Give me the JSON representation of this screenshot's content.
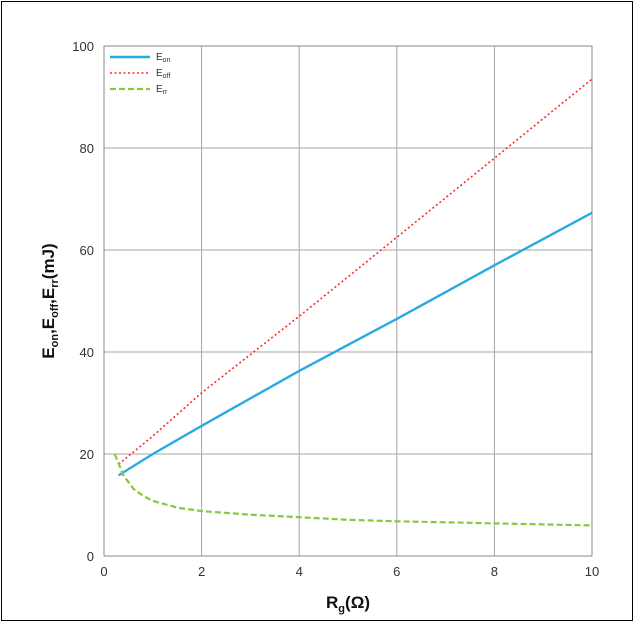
{
  "chart_data": {
    "type": "line",
    "title": "",
    "xlabel": {
      "main": "R",
      "sub": "g",
      "rest": "(Ω)"
    },
    "ylabel": [
      {
        "main": "E",
        "sub": "on"
      },
      {
        "main": ",E",
        "sub": "off"
      },
      {
        "main": ",E",
        "sub": "rr"
      },
      {
        "main": "(mJ)",
        "sub": ""
      }
    ],
    "xlim": [
      0,
      10
    ],
    "ylim": [
      0,
      100
    ],
    "xticks": [
      0,
      2,
      4,
      6,
      8,
      10
    ],
    "yticks": [
      0,
      20,
      40,
      60,
      80,
      100
    ],
    "grid": true,
    "legend_position": "top-left",
    "series": [
      {
        "name": {
          "main": "E",
          "sub": "on"
        },
        "color": "#29abe2",
        "style": "solid",
        "x": [
          0.3,
          1,
          2,
          4,
          6,
          8,
          10
        ],
        "y": [
          15.8,
          20,
          25.5,
          36.3,
          46.5,
          57,
          67.3
        ]
      },
      {
        "name": {
          "main": "E",
          "sub": "off"
        },
        "color": "#ff2a2a",
        "style": "dotted",
        "x": [
          0.3,
          1,
          2,
          4,
          6,
          8,
          10
        ],
        "y": [
          18,
          23.5,
          32,
          47,
          62.5,
          78,
          93.5
        ]
      },
      {
        "name": {
          "main": "E",
          "sub": "rr"
        },
        "color": "#8cc63f",
        "style": "dashed",
        "x": [
          0.22,
          0.4,
          0.6,
          0.8,
          1,
          1.5,
          2,
          3,
          4,
          5,
          6,
          7,
          8,
          9,
          10
        ],
        "y": [
          20,
          15.8,
          13.2,
          11.8,
          10.8,
          9.5,
          8.8,
          8.1,
          7.6,
          7.1,
          6.8,
          6.6,
          6.4,
          6.2,
          6.0
        ]
      }
    ]
  }
}
